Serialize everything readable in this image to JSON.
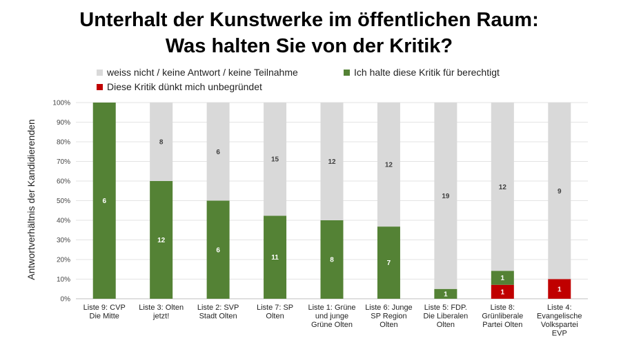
{
  "chart_data": {
    "type": "bar",
    "stacked": true,
    "title_lines": [
      "Unterhalt der Kunstwerke im öffentlichen Raum:",
      "Was halten Sie von der Kritik?"
    ],
    "ylabel": "Antwortverhältnis der Kandidierenden",
    "ylim": [
      0,
      100
    ],
    "y_ticks": [
      "0%",
      "10%",
      "20%",
      "30%",
      "40%",
      "50%",
      "60%",
      "70%",
      "80%",
      "90%",
      "100%"
    ],
    "grid": true,
    "legend_position": "top",
    "categories": [
      [
        "Liste 9: CVP",
        "Die Mitte"
      ],
      [
        "Liste 3: Olten",
        "jetzt!"
      ],
      [
        "Liste 2: SVP",
        "Stadt Olten"
      ],
      [
        "Liste 7: SP",
        "Olten"
      ],
      [
        "Liste 1: Grüne",
        "und junge",
        "Grüne Olten"
      ],
      [
        "Liste 6: Junge",
        "SP Region",
        "Olten"
      ],
      [
        "Liste 5: FDP.",
        "Die Liberalen",
        "Olten"
      ],
      [
        "Liste 8:",
        "Grünliberale",
        "Partei Olten"
      ],
      [
        "Liste 4:",
        "Evangelische",
        "Volkspartei",
        "EVP"
      ]
    ],
    "series": [
      {
        "name": "Diese Kritik dünkt mich unbegründet",
        "color": "#c00000",
        "counts": [
          0,
          0,
          0,
          0,
          0,
          0,
          0,
          1,
          1
        ],
        "percent": [
          0,
          0,
          0,
          0,
          0,
          0,
          0,
          7.1,
          10
        ]
      },
      {
        "name": "Ich halte diese Kritik für berechtigt",
        "color": "#548235",
        "counts": [
          6,
          12,
          6,
          11,
          8,
          7,
          1,
          1,
          0
        ],
        "percent": [
          100,
          60,
          50,
          42.3,
          40,
          36.8,
          5,
          7.1,
          0
        ]
      },
      {
        "name": "weiss nicht / keine Antwort / keine Teilnahme",
        "color": "#d9d9d9",
        "counts": [
          0,
          8,
          6,
          15,
          12,
          12,
          19,
          12,
          9
        ],
        "percent": [
          0,
          40,
          50,
          57.7,
          60,
          63.2,
          95,
          85.8,
          90
        ]
      }
    ]
  }
}
